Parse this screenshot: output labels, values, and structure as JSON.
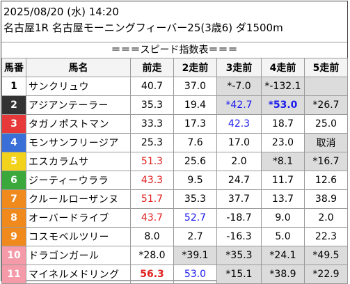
{
  "header": {
    "line1": "2025/08/20 (水) 14:20",
    "line2": "名古屋1R 名古屋モーニングフィーバー25(3歳6) ダ1500m"
  },
  "subtitle": "＝＝＝スピード指数表＝＝＝",
  "columns": [
    "馬番",
    "馬名",
    "前走",
    "2走前",
    "3走前",
    "4走前",
    "5走前"
  ],
  "colors": {
    "gate1": "#ffffff",
    "gate2": "#333333",
    "gate3": "#e8393a",
    "gate4": "#3a6fd8",
    "gate5": "#f3d21c",
    "gate6": "#3aa83a",
    "gate7": "#f08a1c",
    "gate8": "#f08a1c",
    "highlight_red": "#e02020",
    "highlight_blue": "#1a1aee",
    "grey_cell": "#dcdcdc"
  },
  "rows": [
    {
      "no": "1",
      "name": "サンクリュウ",
      "v": [
        "40.7",
        "37.0",
        "*-7.0",
        "*-132.1",
        ""
      ]
    },
    {
      "no": "2",
      "name": "アジアンテーラー",
      "v": [
        "35.3",
        "19.4",
        "*42.7",
        "*53.0",
        "*26.7"
      ]
    },
    {
      "no": "3",
      "name": "タガノポストマン",
      "v": [
        "33.3",
        "17.3",
        "42.3",
        "18.7",
        "25.0"
      ]
    },
    {
      "no": "4",
      "name": "モンサンフリージア",
      "v": [
        "25.3",
        "7.6",
        "17.0",
        "23.0",
        "取消"
      ]
    },
    {
      "no": "5",
      "name": "エスカラムサ",
      "v": [
        "51.3",
        "25.6",
        "2.0",
        "*8.1",
        "*16.7"
      ]
    },
    {
      "no": "6",
      "name": "ジーティーウララ",
      "v": [
        "43.3",
        "9.5",
        "24.7",
        "11.7",
        "12.6"
      ]
    },
    {
      "no": "7",
      "name": "クルールローザンヌ",
      "v": [
        "51.7",
        "35.3",
        "37.7",
        "13.7",
        "38.9"
      ]
    },
    {
      "no": "8",
      "name": "オーバードライブ",
      "v": [
        "43.7",
        "52.7",
        "-18.7",
        "9.0",
        "2.0"
      ]
    },
    {
      "no": "9",
      "name": "コスモベルツリー",
      "v": [
        "8.0",
        "2.7",
        "-16.3",
        "5.0",
        "22.3"
      ]
    },
    {
      "no": "10",
      "name": "ドラゴンガール",
      "v": [
        "*28.0",
        "*39.1",
        "*35.3",
        "*24.1",
        "*49.5"
      ]
    },
    {
      "no": "11",
      "name": "マイネルメドリング",
      "v": [
        "56.3",
        "53.0",
        "*15.1",
        "*38.9",
        "*22.9"
      ]
    }
  ]
}
